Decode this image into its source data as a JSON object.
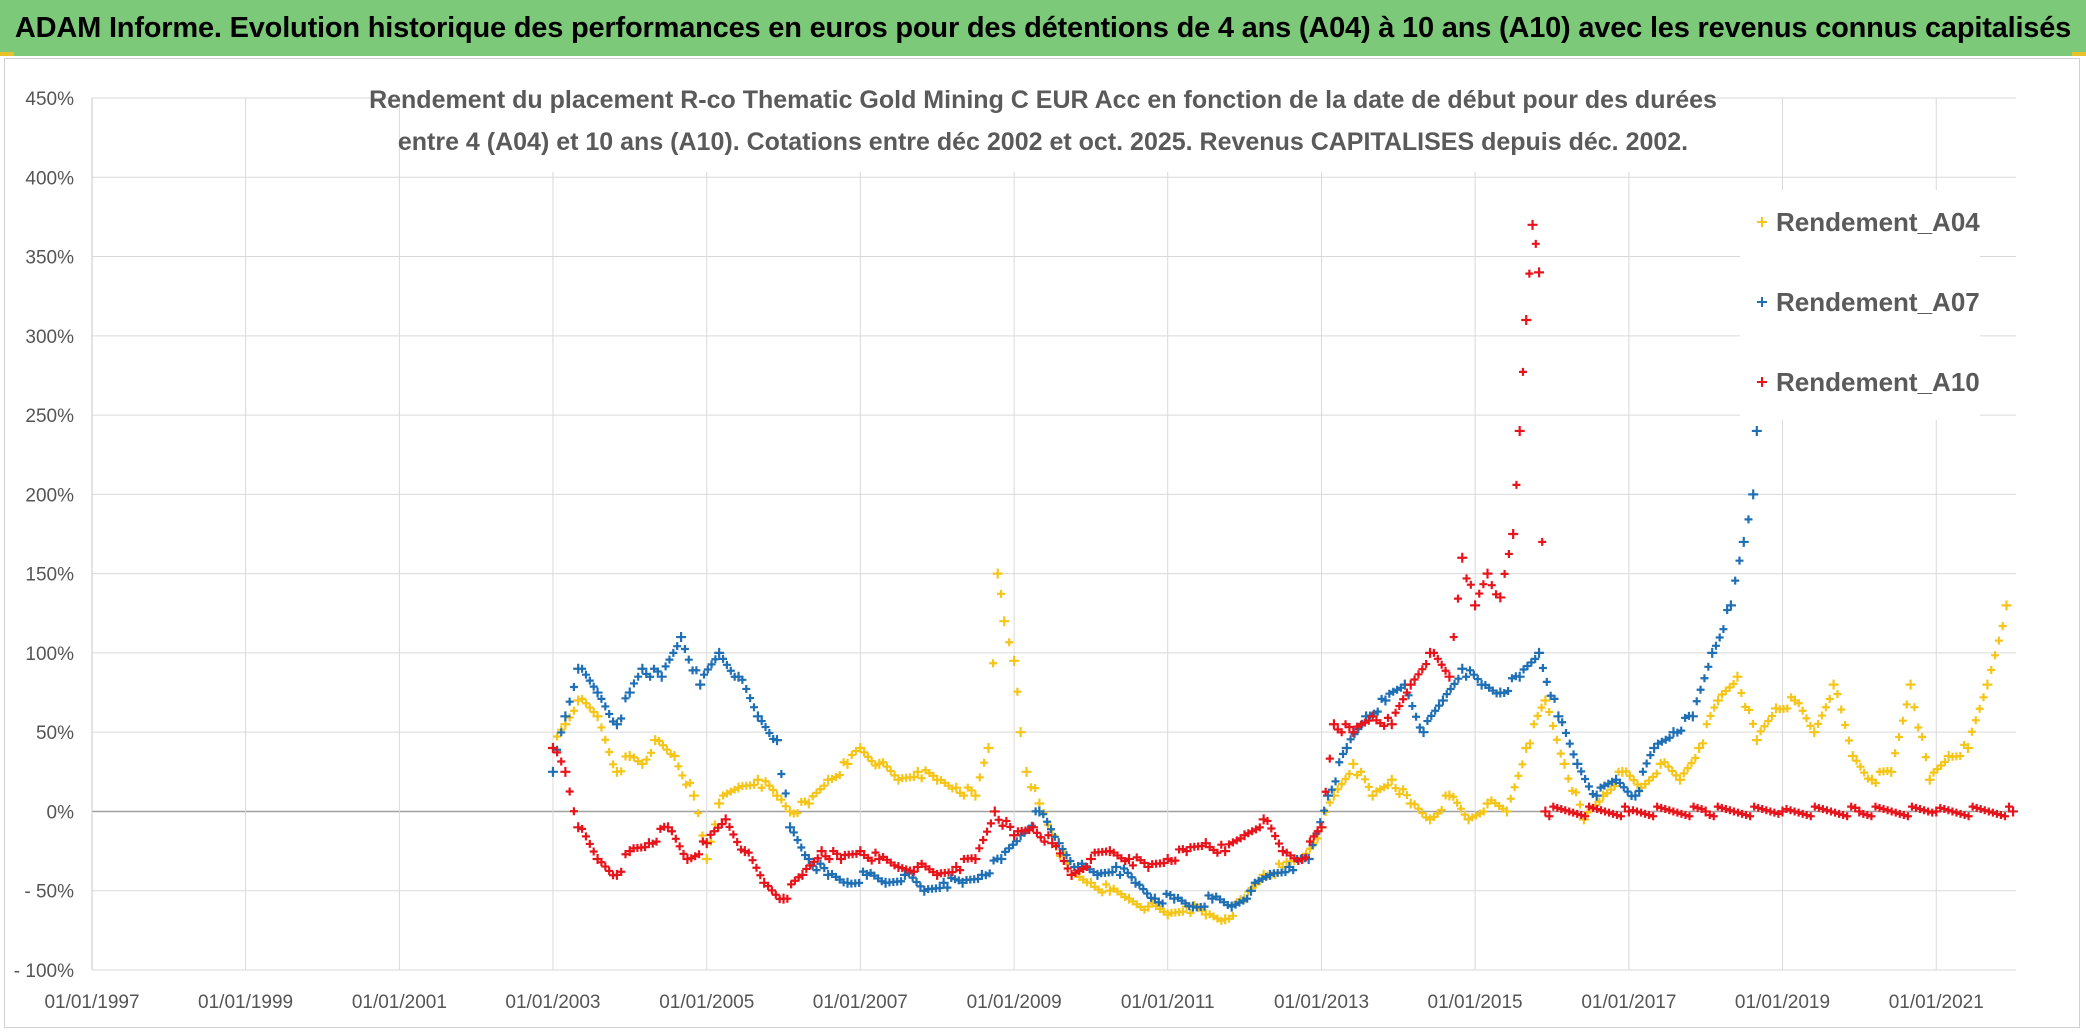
{
  "banner": {
    "title": "ADAM Informe. Evolution historique des performances en euros pour des détentions de 4 ans (A04) à 10 ans (A10) avec les revenus connus capitalisés"
  },
  "colors": {
    "banner_bg": "#7dc97a",
    "A04": "#f5c518",
    "A07": "#1f6fb5",
    "A10": "#e8141c",
    "grid": "#d9d9d9",
    "zero_line": "#a0a0a0"
  },
  "chart_data": {
    "type": "scatter",
    "title_lines": [
      "Rendement du placement R-co Thematic Gold Mining C EUR Acc en fonction de la date de début pour des durées",
      "entre 4 (A04) et 10 ans (A10). Cotations entre déc 2002 et oct. 2025. Revenus CAPITALISES depuis déc. 2002."
    ],
    "xlabel": "",
    "ylabel": "",
    "x_range": [
      "1997-01-01",
      "2022-01-15"
    ],
    "y_range": [
      -100,
      450
    ],
    "x_ticks": [
      "01/01/1997",
      "01/01/1999",
      "01/01/2001",
      "01/01/2003",
      "01/01/2005",
      "01/01/2007",
      "01/01/2009",
      "01/01/2011",
      "01/01/2013",
      "01/01/2015",
      "01/01/2017",
      "01/01/2019",
      "01/01/2021"
    ],
    "y_ticks": [
      "450%",
      "400%",
      "350%",
      "300%",
      "250%",
      "200%",
      "150%",
      "100%",
      "50%",
      "0%",
      "- 50%",
      "- 100%"
    ],
    "y_tick_values": [
      450,
      400,
      350,
      300,
      250,
      200,
      150,
      100,
      50,
      0,
      -50,
      -100
    ],
    "grid": true,
    "legend_position": "top-right",
    "marker": "+",
    "series": [
      {
        "name": "Rendement_A04",
        "color": "#f5c518",
        "points": [
          [
            "2003-01-01",
            40
          ],
          [
            "2003-03-01",
            55
          ],
          [
            "2003-05-01",
            70
          ],
          [
            "2003-08-01",
            60
          ],
          [
            "2003-11-01",
            25
          ],
          [
            "2004-01-01",
            35
          ],
          [
            "2004-03-01",
            30
          ],
          [
            "2004-05-01",
            45
          ],
          [
            "2004-08-01",
            35
          ],
          [
            "2004-11-01",
            10
          ],
          [
            "2005-01-01",
            -30
          ],
          [
            "2005-03-01",
            5
          ],
          [
            "2005-06-01",
            15
          ],
          [
            "2005-09-01",
            20
          ],
          [
            "2005-12-01",
            10
          ],
          [
            "2006-02-01",
            0
          ],
          [
            "2006-05-01",
            5
          ],
          [
            "2006-08-01",
            20
          ],
          [
            "2006-11-01",
            30
          ],
          [
            "2007-01-01",
            40
          ],
          [
            "2007-04-01",
            30
          ],
          [
            "2007-07-01",
            20
          ],
          [
            "2007-10-01",
            25
          ],
          [
            "2008-01-01",
            20
          ],
          [
            "2008-04-01",
            15
          ],
          [
            "2008-07-01",
            10
          ],
          [
            "2008-09-01",
            40
          ],
          [
            "2008-10-15",
            150
          ],
          [
            "2008-11-15",
            120
          ],
          [
            "2009-01-01",
            95
          ],
          [
            "2009-02-01",
            50
          ],
          [
            "2009-03-01",
            25
          ],
          [
            "2009-05-01",
            5
          ],
          [
            "2009-07-01",
            -15
          ],
          [
            "2009-10-01",
            -40
          ],
          [
            "2010-01-01",
            -45
          ],
          [
            "2010-04-01",
            -50
          ],
          [
            "2010-07-01",
            -55
          ],
          [
            "2010-10-01",
            -60
          ],
          [
            "2011-01-01",
            -65
          ],
          [
            "2011-04-01",
            -60
          ],
          [
            "2011-07-01",
            -65
          ],
          [
            "2011-10-01",
            -68
          ],
          [
            "2012-01-01",
            -55
          ],
          [
            "2012-04-01",
            -40
          ],
          [
            "2012-07-01",
            -35
          ],
          [
            "2012-10-01",
            -30
          ],
          [
            "2013-01-01",
            -10
          ],
          [
            "2013-03-01",
            10
          ],
          [
            "2013-06-01",
            30
          ],
          [
            "2013-09-01",
            10
          ],
          [
            "2013-12-01",
            20
          ],
          [
            "2014-03-01",
            5
          ],
          [
            "2014-06-01",
            -5
          ],
          [
            "2014-09-01",
            10
          ],
          [
            "2014-12-01",
            -5
          ],
          [
            "2015-03-01",
            5
          ],
          [
            "2015-06-01",
            0
          ],
          [
            "2015-09-01",
            40
          ],
          [
            "2015-12-01",
            70
          ],
          [
            "2016-03-01",
            30
          ],
          [
            "2016-06-01",
            -5
          ],
          [
            "2016-09-01",
            10
          ],
          [
            "2016-12-01",
            25
          ],
          [
            "2017-03-01",
            15
          ],
          [
            "2017-06-01",
            30
          ],
          [
            "2017-09-01",
            20
          ],
          [
            "2017-12-01",
            40
          ],
          [
            "2018-03-01",
            70
          ],
          [
            "2018-06-01",
            85
          ],
          [
            "2018-09-01",
            45
          ],
          [
            "2018-12-01",
            65
          ],
          [
            "2019-03-01",
            70
          ],
          [
            "2019-06-01",
            50
          ],
          [
            "2019-09-01",
            80
          ],
          [
            "2019-12-01",
            35
          ],
          [
            "2020-03-01",
            20
          ],
          [
            "2020-06-01",
            25
          ],
          [
            "2020-09-01",
            80
          ],
          [
            "2020-12-01",
            20
          ],
          [
            "2021-03-01",
            35
          ],
          [
            "2021-06-01",
            40
          ],
          [
            "2021-09-01",
            80
          ],
          [
            "2021-12-01",
            130
          ]
        ]
      },
      {
        "name": "Rendement_A07",
        "color": "#1f6fb5",
        "points": [
          [
            "2003-01-01",
            25
          ],
          [
            "2003-03-01",
            60
          ],
          [
            "2003-05-01",
            90
          ],
          [
            "2003-08-01",
            75
          ],
          [
            "2003-11-01",
            55
          ],
          [
            "2004-01-01",
            75
          ],
          [
            "2004-03-01",
            90
          ],
          [
            "2004-06-01",
            85
          ],
          [
            "2004-09-01",
            110
          ],
          [
            "2004-12-01",
            80
          ],
          [
            "2005-03-01",
            100
          ],
          [
            "2005-06-01",
            85
          ],
          [
            "2005-09-01",
            60
          ],
          [
            "2005-12-01",
            45
          ],
          [
            "2006-02-01",
            -10
          ],
          [
            "2006-05-01",
            -30
          ],
          [
            "2006-08-01",
            -40
          ],
          [
            "2006-11-01",
            -45
          ],
          [
            "2007-02-01",
            -40
          ],
          [
            "2007-05-01",
            -45
          ],
          [
            "2007-08-01",
            -40
          ],
          [
            "2007-11-01",
            -50
          ],
          [
            "2008-02-01",
            -45
          ],
          [
            "2008-05-01",
            -45
          ],
          [
            "2008-08-01",
            -40
          ],
          [
            "2008-11-01",
            -30
          ],
          [
            "2009-02-01",
            -15
          ],
          [
            "2009-05-01",
            0
          ],
          [
            "2009-08-01",
            -20
          ],
          [
            "2009-11-01",
            -35
          ],
          [
            "2010-02-01",
            -40
          ],
          [
            "2010-05-01",
            -35
          ],
          [
            "2010-08-01",
            -45
          ],
          [
            "2010-11-01",
            -55
          ],
          [
            "2011-02-01",
            -55
          ],
          [
            "2011-05-01",
            -60
          ],
          [
            "2011-08-01",
            -55
          ],
          [
            "2011-11-01",
            -60
          ],
          [
            "2012-02-01",
            -50
          ],
          [
            "2012-05-01",
            -40
          ],
          [
            "2012-08-01",
            -35
          ],
          [
            "2012-11-01",
            -30
          ],
          [
            "2013-02-01",
            10
          ],
          [
            "2013-05-01",
            40
          ],
          [
            "2013-08-01",
            60
          ],
          [
            "2013-11-01",
            70
          ],
          [
            "2014-02-01",
            80
          ],
          [
            "2014-05-01",
            50
          ],
          [
            "2014-08-01",
            70
          ],
          [
            "2014-11-01",
            90
          ],
          [
            "2015-02-01",
            80
          ],
          [
            "2015-05-01",
            75
          ],
          [
            "2015-08-01",
            85
          ],
          [
            "2015-11-01",
            100
          ],
          [
            "2016-02-01",
            60
          ],
          [
            "2016-05-01",
            30
          ],
          [
            "2016-08-01",
            10
          ],
          [
            "2016-11-01",
            20
          ],
          [
            "2017-02-01",
            10
          ],
          [
            "2017-05-01",
            40
          ],
          [
            "2017-08-01",
            50
          ],
          [
            "2017-11-01",
            60
          ],
          [
            "2018-02-01",
            100
          ],
          [
            "2018-05-01",
            130
          ],
          [
            "2018-07-01",
            170
          ],
          [
            "2018-08-15",
            200
          ],
          [
            "2018-09-01",
            240
          ]
        ]
      },
      {
        "name": "Rendement_A10",
        "color": "#e8141c",
        "points": [
          [
            "2003-01-01",
            40
          ],
          [
            "2003-03-01",
            25
          ],
          [
            "2003-05-01",
            -10
          ],
          [
            "2003-08-01",
            -30
          ],
          [
            "2003-11-01",
            -40
          ],
          [
            "2004-01-01",
            -25
          ],
          [
            "2004-04-01",
            -20
          ],
          [
            "2004-07-01",
            -10
          ],
          [
            "2004-10-01",
            -30
          ],
          [
            "2005-01-01",
            -20
          ],
          [
            "2005-04-01",
            -5
          ],
          [
            "2005-07-01",
            -25
          ],
          [
            "2005-10-01",
            -45
          ],
          [
            "2006-01-01",
            -55
          ],
          [
            "2006-04-01",
            -40
          ],
          [
            "2006-07-01",
            -25
          ],
          [
            "2006-10-01",
            -30
          ],
          [
            "2007-01-01",
            -25
          ],
          [
            "2007-04-01",
            -30
          ],
          [
            "2007-07-01",
            -35
          ],
          [
            "2007-10-01",
            -35
          ],
          [
            "2008-01-01",
            -40
          ],
          [
            "2008-04-01",
            -35
          ],
          [
            "2008-07-01",
            -30
          ],
          [
            "2008-10-01",
            0
          ],
          [
            "2009-01-01",
            -15
          ],
          [
            "2009-04-01",
            -10
          ],
          [
            "2009-07-01",
            -20
          ],
          [
            "2009-10-01",
            -40
          ],
          [
            "2010-01-01",
            -30
          ],
          [
            "2010-04-01",
            -25
          ],
          [
            "2010-07-01",
            -30
          ],
          [
            "2010-10-01",
            -35
          ],
          [
            "2011-01-01",
            -30
          ],
          [
            "2011-04-01",
            -25
          ],
          [
            "2011-07-01",
            -20
          ],
          [
            "2011-10-01",
            -25
          ],
          [
            "2012-01-01",
            -15
          ],
          [
            "2012-04-01",
            -5
          ],
          [
            "2012-07-01",
            -25
          ],
          [
            "2012-10-01",
            -30
          ],
          [
            "2013-01-01",
            -10
          ],
          [
            "2013-03-01",
            55
          ],
          [
            "2013-06-01",
            50
          ],
          [
            "2013-09-01",
            60
          ],
          [
            "2013-12-01",
            55
          ],
          [
            "2014-03-01",
            80
          ],
          [
            "2014-06-01",
            100
          ],
          [
            "2014-09-01",
            85
          ],
          [
            "2014-11-01",
            160
          ],
          [
            "2015-01-01",
            130
          ],
          [
            "2015-03-01",
            150
          ],
          [
            "2015-05-01",
            135
          ],
          [
            "2015-07-01",
            175
          ],
          [
            "2015-08-01",
            240
          ],
          [
            "2015-09-01",
            310
          ],
          [
            "2015-10-01",
            370
          ],
          [
            "2015-11-01",
            340
          ],
          [
            "2015-12-01",
            0
          ],
          [
            "2017-01-01",
            0
          ],
          [
            "2018-01-01",
            0
          ],
          [
            "2019-01-01",
            0
          ],
          [
            "2020-01-01",
            0
          ],
          [
            "2021-01-01",
            0
          ],
          [
            "2022-01-01",
            0
          ]
        ]
      }
    ]
  }
}
